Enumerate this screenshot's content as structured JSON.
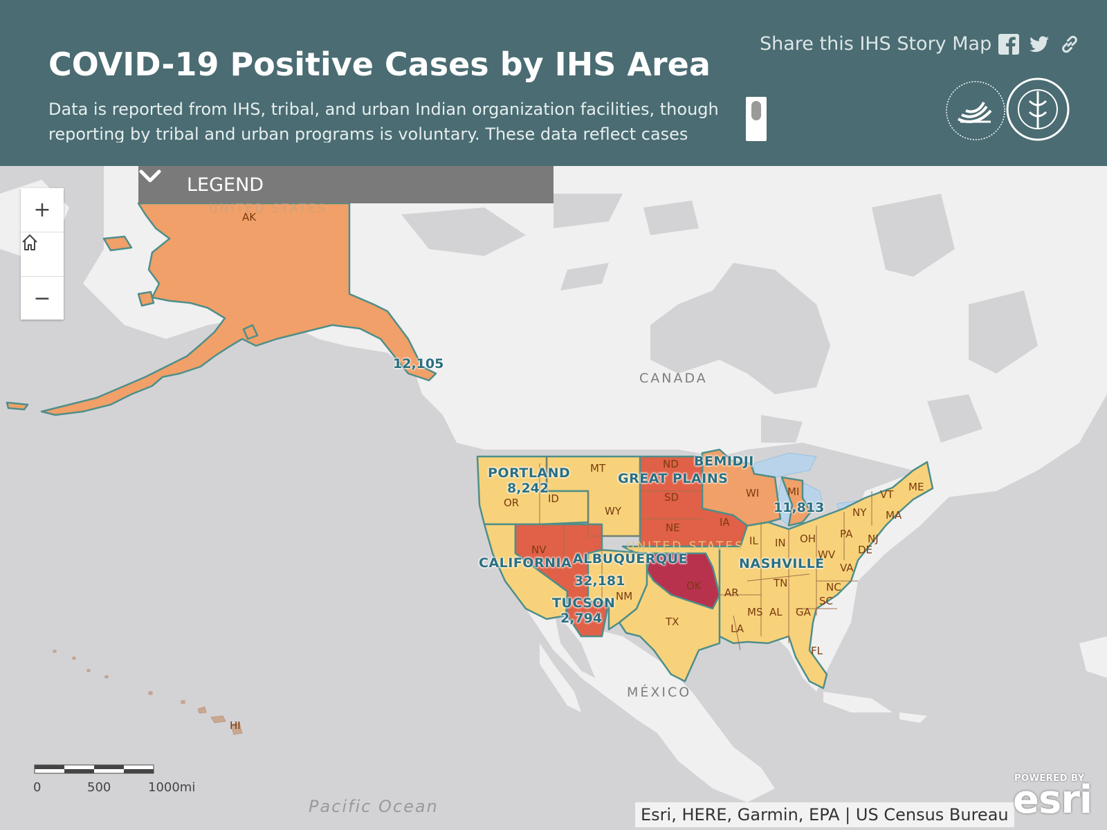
{
  "header": {
    "title": "COVID-19 Positive Cases by IHS Area",
    "description": "Data is reported from IHS, tribal, and urban Indian organization facilities, though reporting by tribal and urban programs is voluntary. These data reflect cases",
    "share_label": "Share this IHS Story Map",
    "share_icons": [
      "facebook-icon",
      "twitter-icon",
      "link-icon"
    ],
    "logos": [
      "hhs-seal-logo",
      "indian-health-service-seal-logo"
    ]
  },
  "legend": {
    "label": "LEGEND",
    "state": "collapsed"
  },
  "zoom_controls": [
    {
      "name": "zoom-in",
      "icon": "plus-icon",
      "symbol": "+"
    },
    {
      "name": "home",
      "icon": "home-icon"
    },
    {
      "name": "zoom-out",
      "icon": "minus-icon",
      "symbol": "−"
    }
  ],
  "map": {
    "region_labels": {
      "canada": "CANADA",
      "mexico": "MÉXICO",
      "united_states_ak": "UNITED STATES",
      "united_states": "UNITED STATES",
      "pacific_ocean": "Pacific Ocean"
    },
    "colors": {
      "land": "#f0f0f0",
      "water": "#d3d3d6",
      "low": "#f7d27a",
      "medium": "#f0a068",
      "high": "#e06048",
      "highest": "#b8324e",
      "border": "#4e8e8a"
    },
    "areas": [
      {
        "name": "",
        "value": "12,105",
        "level": "medium"
      },
      {
        "name": "PORTLAND",
        "value": "8,242",
        "level": "low"
      },
      {
        "name": "CALIFORNIA",
        "value": "",
        "level": "low"
      },
      {
        "name": "ALBUQUERQUE",
        "value": "",
        "level": "low"
      },
      {
        "name": "",
        "value": "32,181",
        "level": "high"
      },
      {
        "name": "TUCSON",
        "value": "2,794",
        "level": "high"
      },
      {
        "name": "GREAT PLAINS",
        "value": "",
        "level": "high"
      },
      {
        "name": "BEMIDJI",
        "value": "11,813",
        "level": "medium"
      },
      {
        "name": "NASHVILLE",
        "value": "",
        "level": "low"
      }
    ],
    "state_labels": [
      "AK",
      "HI",
      "OR",
      "ID",
      "MT",
      "WY",
      "NV",
      "NM",
      "TX",
      "ND",
      "SD",
      "NE",
      "IA",
      "OK",
      "AR",
      "LA",
      "WI",
      "MI",
      "IL",
      "IN",
      "OH",
      "TN",
      "MS",
      "AL",
      "GA",
      "FL",
      "SC",
      "NC",
      "VA",
      "WV",
      "PA",
      "NY",
      "NJ",
      "DE",
      "VT",
      "MA",
      "ME"
    ],
    "scale": {
      "labels": [
        "0",
        "500",
        "1000mi"
      ]
    },
    "attribution": "Esri, HERE, Garmin, EPA | US Census Bureau",
    "powered_by": "POWERED BY",
    "esri": "esri"
  }
}
